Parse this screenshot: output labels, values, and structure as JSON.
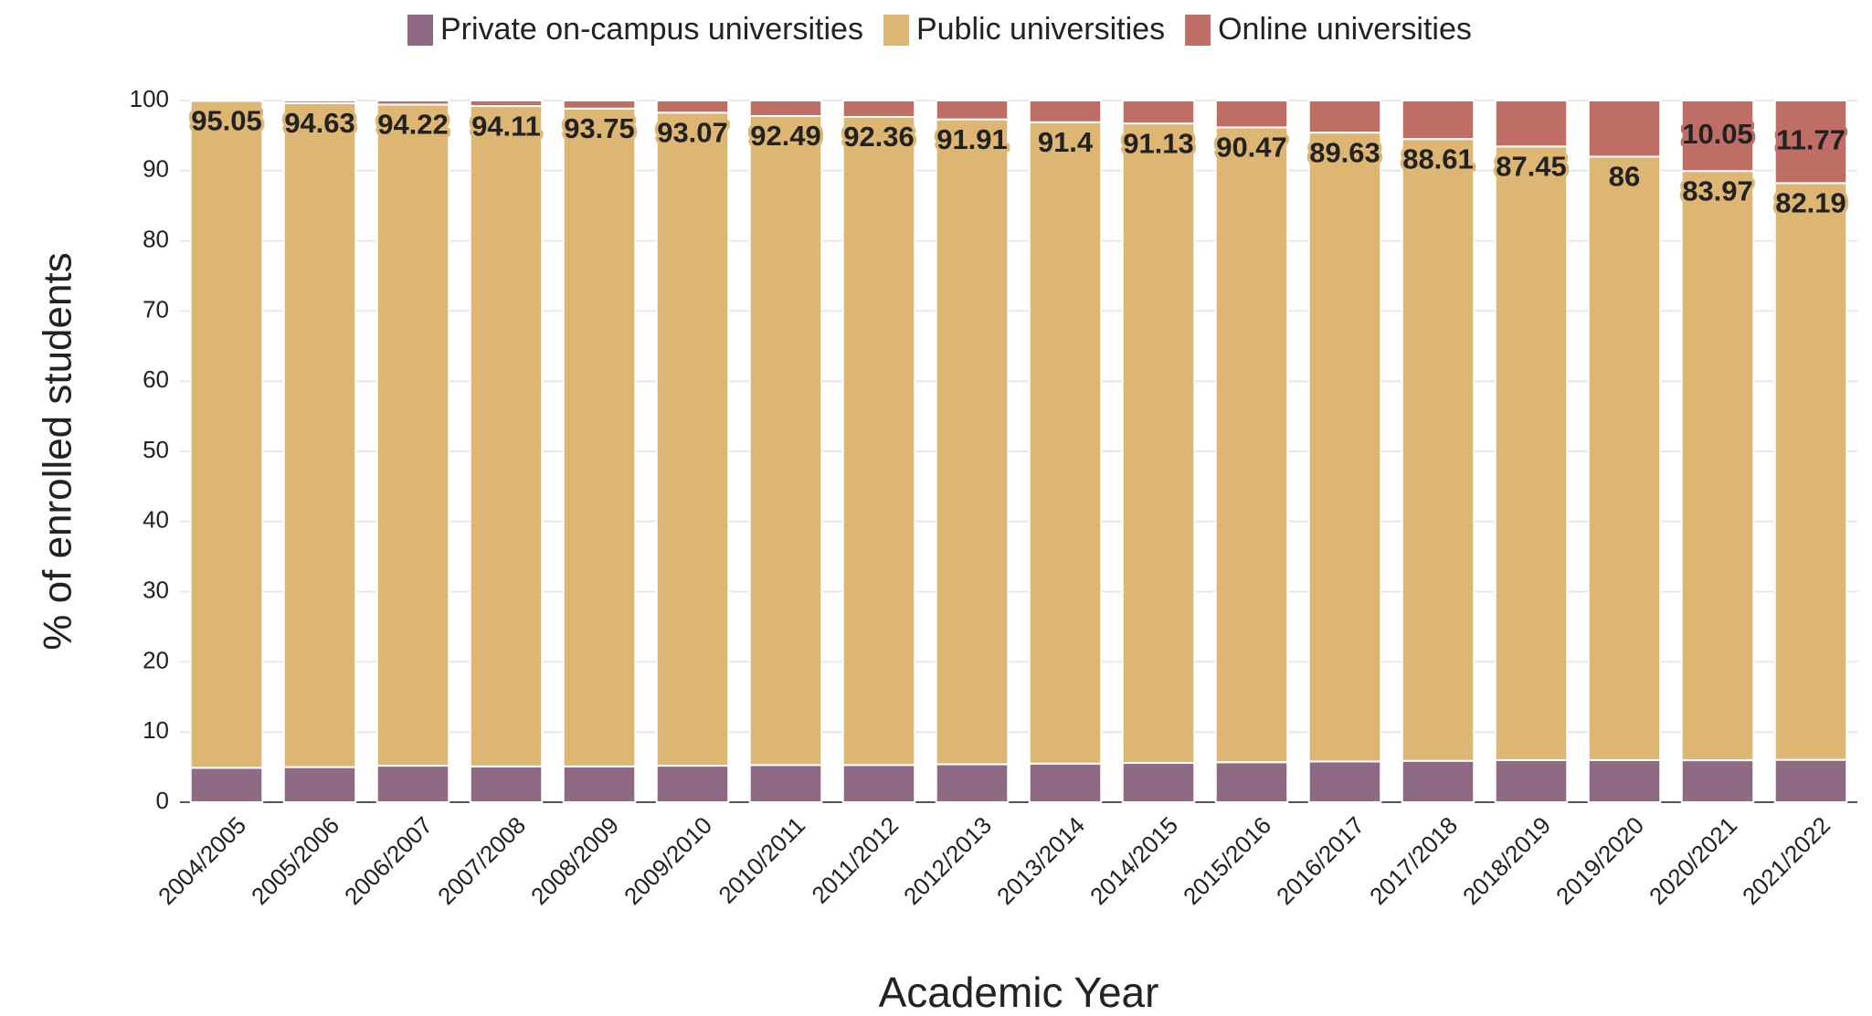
{
  "chart_data": {
    "type": "stacked_bar",
    "x_label": "Academic Year",
    "y_label": "% of enrolled students",
    "categories": [
      "2004/2005",
      "2005/2006",
      "2006/2007",
      "2007/2008",
      "2008/2009",
      "2009/2010",
      "2010/2011",
      "2011/2012",
      "2012/2013",
      "2013/2014",
      "2014/2015",
      "2015/2016",
      "2016/2017",
      "2017/2018",
      "2018/2019",
      "2019/2020",
      "2020/2021",
      "2021/2022"
    ],
    "series": [
      {
        "name": "Private on-campus universities",
        "color": "#8e6a85",
        "values": [
          4.9,
          5.0,
          5.2,
          5.1,
          5.1,
          5.2,
          5.3,
          5.3,
          5.4,
          5.5,
          5.6,
          5.7,
          5.8,
          5.9,
          6.0,
          6.0,
          5.98,
          6.04
        ]
      },
      {
        "name": "Public universities",
        "color": "#deb673",
        "values": [
          95.05,
          94.63,
          94.22,
          94.11,
          93.75,
          93.07,
          92.49,
          92.36,
          91.91,
          91.4,
          91.13,
          90.47,
          89.63,
          88.61,
          87.45,
          86,
          83.97,
          82.19
        ]
      },
      {
        "name": "Online universities",
        "color": "#bf6e66",
        "values": [
          0.05,
          0.37,
          0.58,
          0.79,
          1.15,
          1.73,
          2.21,
          2.34,
          2.69,
          3.1,
          3.27,
          3.83,
          4.57,
          5.49,
          6.55,
          8.0,
          10.05,
          11.77
        ],
        "value_labels": [
          null,
          null,
          null,
          null,
          null,
          null,
          null,
          null,
          null,
          null,
          null,
          null,
          null,
          null,
          null,
          null,
          "10.05",
          "11.77"
        ]
      }
    ],
    "labeled_series": [
      1,
      2
    ],
    "ylim": [
      0,
      100
    ],
    "yticks": [
      0,
      10,
      20,
      30,
      40,
      50,
      60,
      70,
      80,
      90,
      100
    ],
    "grid": true,
    "legend": "top"
  }
}
